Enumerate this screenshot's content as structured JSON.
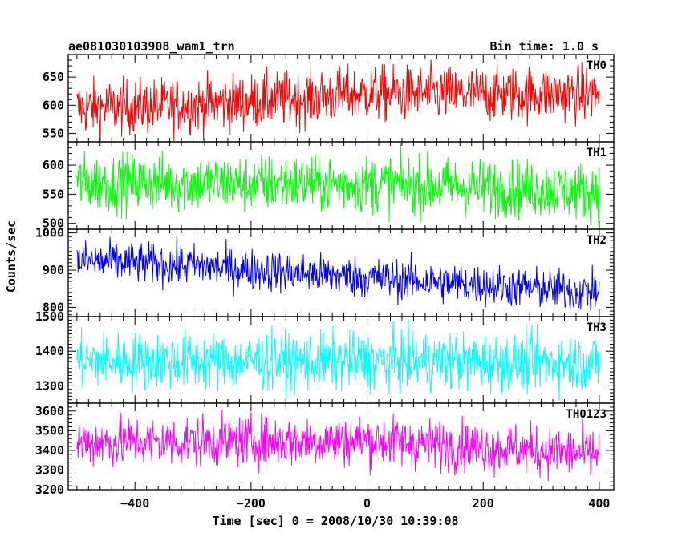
{
  "chart_data": {
    "type": "line",
    "title": "ae081030103908_wam1_trn",
    "bin_time": "Bin time: 1.0 s",
    "xlabel": "Time [sec] 0 = 2008/10/30 10:39:08",
    "ylabel": "Counts/sec",
    "xlim": [
      -515,
      425
    ],
    "x_ticks": [
      -400,
      -200,
      0,
      200,
      400
    ],
    "x_tick_labels": [
      "−400",
      "−200",
      "0",
      "200",
      "400"
    ],
    "x_start": -500,
    "x_end": 400,
    "bin": 1.0,
    "panels": [
      {
        "label": "TH0",
        "color": "#ff0000",
        "ylim": [
          535,
          690
        ],
        "y_ticks": [
          550,
          600,
          650
        ],
        "y_tick_labels": [
          "550",
          "600",
          "650"
        ],
        "trend": {
          "x": [
            -500,
            -300,
            0,
            400
          ],
          "y": [
            595,
            600,
            620,
            620
          ]
        },
        "noise": 25
      },
      {
        "label": "TH1",
        "color": "#00ff00",
        "ylim": [
          490,
          640
        ],
        "y_ticks": [
          500,
          550,
          600
        ],
        "y_tick_labels": [
          "500",
          "550",
          "600"
        ],
        "trend": {
          "x": [
            -500,
            0,
            400
          ],
          "y": [
            570,
            568,
            555
          ]
        },
        "noise": 25
      },
      {
        "label": "TH2",
        "color": "#0000ff",
        "ylim": [
          775,
          1010
        ],
        "y_ticks": [
          800,
          900,
          1000
        ],
        "y_tick_labels": [
          "800",
          "900",
          "1000"
        ],
        "trend": {
          "x": [
            -500,
            -300,
            0,
            400
          ],
          "y": [
            925,
            912,
            880,
            840
          ]
        },
        "noise": 28
      },
      {
        "label": "TH3",
        "color": "#00ffff",
        "ylim": [
          1250,
          1500
        ],
        "y_ticks": [
          1300,
          1400,
          1500
        ],
        "y_tick_labels": [
          "1300",
          "1400",
          "1500"
        ],
        "trend": {
          "x": [
            -500,
            400
          ],
          "y": [
            1372,
            1368
          ]
        },
        "noise": 42
      },
      {
        "label": "TH0123",
        "color": "#ff00ff",
        "ylim": [
          3200,
          3640
        ],
        "y_ticks": [
          3200,
          3300,
          3400,
          3500,
          3600
        ],
        "y_tick_labels": [
          "3200",
          "3300",
          "3400",
          "3500",
          "3600"
        ],
        "trend": {
          "x": [
            -500,
            0,
            400
          ],
          "y": [
            3440,
            3450,
            3380
          ]
        },
        "noise": 65
      }
    ]
  }
}
